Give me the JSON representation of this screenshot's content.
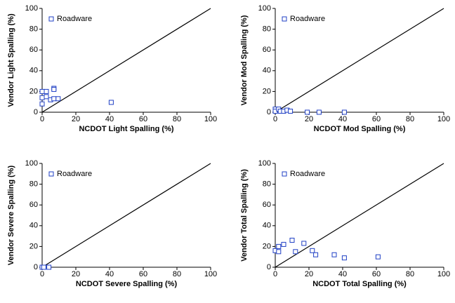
{
  "chart_data": [
    {
      "type": "scatter",
      "xlabel": "NCDOT Light Spalling (%)",
      "ylabel": "Vendor Light Spalling (%)",
      "xlim": [
        0,
        100
      ],
      "ylim": [
        0,
        100
      ],
      "xticks": [
        0,
        20,
        40,
        60,
        80,
        100
      ],
      "yticks": [
        0,
        20,
        40,
        60,
        80,
        100
      ],
      "legend": "upper left",
      "series": [
        {
          "name": "Roadware",
          "color": "#1f3fc4",
          "x": [
            0,
            0,
            0,
            2.5,
            2.5,
            5,
            7,
            7,
            7,
            9.5,
            41
          ],
          "values": [
            8,
            14,
            20,
            20,
            15,
            12,
            23,
            22,
            13,
            13,
            9.5
          ]
        }
      ]
    },
    {
      "type": "scatter",
      "xlabel": "NCDOT Mod Spalling (%)",
      "ylabel": "Vendor Mod Spalling (%)",
      "xlim": [
        0,
        100
      ],
      "ylim": [
        0,
        100
      ],
      "xticks": [
        0,
        20,
        40,
        60,
        80,
        100
      ],
      "yticks": [
        0,
        20,
        40,
        60,
        80,
        100
      ],
      "legend": "upper left",
      "series": [
        {
          "name": "Roadware",
          "color": "#1f3fc4",
          "x": [
            0,
            0,
            2,
            3,
            5,
            7,
            9,
            19,
            26,
            41
          ],
          "values": [
            3,
            1,
            3,
            1,
            1,
            2,
            1,
            0,
            0,
            0
          ]
        }
      ]
    },
    {
      "type": "scatter",
      "xlabel": "NCDOT Severe Spalling (%)",
      "ylabel": "Vendor Severe Spalling (%)",
      "xlim": [
        0,
        100
      ],
      "ylim": [
        0,
        100
      ],
      "xticks": [
        0,
        20,
        40,
        60,
        80,
        100
      ],
      "yticks": [
        0,
        20,
        40,
        60,
        80,
        100
      ],
      "legend": "upper left",
      "series": [
        {
          "name": "Roadware",
          "color": "#1f3fc4",
          "x": [
            0,
            1,
            4
          ],
          "values": [
            0,
            0,
            0
          ]
        }
      ]
    },
    {
      "type": "scatter",
      "xlabel": "NCDOT Total Spalling (%)",
      "ylabel": "Vendor Total Spalling (%)",
      "xlim": [
        0,
        100
      ],
      "ylim": [
        0,
        100
      ],
      "xticks": [
        0,
        20,
        40,
        60,
        80,
        100
      ],
      "yticks": [
        0,
        20,
        40,
        60,
        80,
        100
      ],
      "legend": "upper left",
      "series": [
        {
          "name": "Roadware",
          "color": "#1f3fc4",
          "x": [
            0,
            2,
            2,
            5,
            10,
            12,
            17,
            22,
            24,
            35,
            41,
            61
          ],
          "values": [
            16,
            20,
            15,
            22,
            26,
            15,
            23,
            16,
            12,
            12,
            9,
            10
          ]
        }
      ]
    }
  ]
}
